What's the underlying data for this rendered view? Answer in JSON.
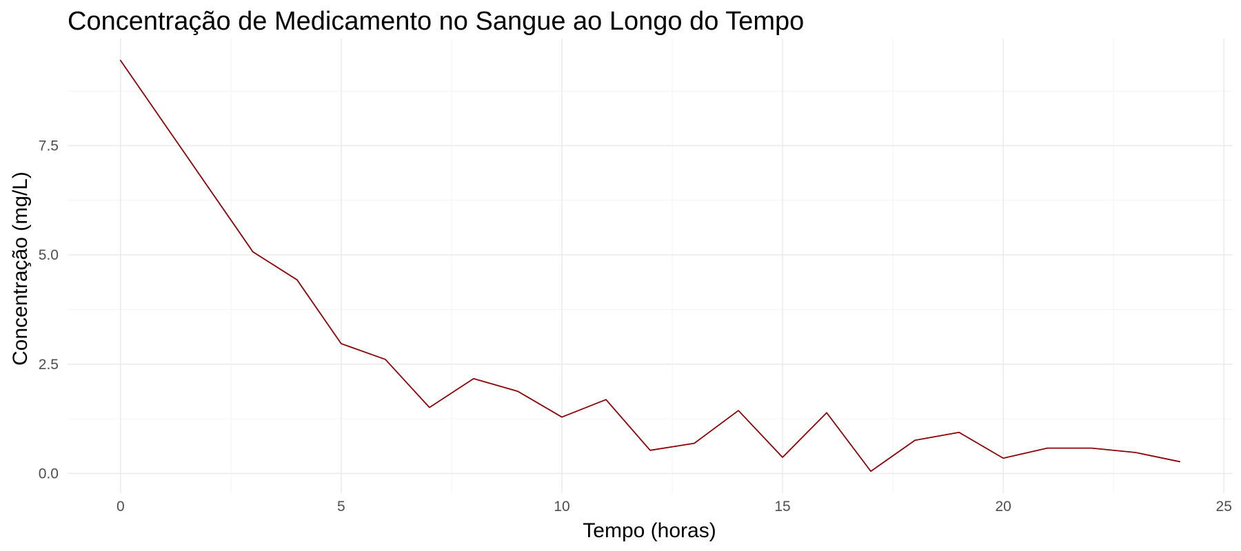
{
  "chart_data": {
    "type": "line",
    "title": "Concentração de Medicamento no Sangue ao Longo do Tempo",
    "xlabel": "Tempo (horas)",
    "ylabel": "Concentração (mg/L)",
    "xlim": [
      -1.2,
      25.2
    ],
    "ylim": [
      -0.45,
      9.95
    ],
    "x_ticks": [
      0,
      5,
      10,
      15,
      20,
      25
    ],
    "x_tick_labels": [
      "0",
      "5",
      "10",
      "15",
      "20",
      "25"
    ],
    "y_ticks": [
      0.0,
      2.5,
      5.0,
      7.5
    ],
    "y_tick_labels": [
      "0.0",
      "2.5",
      "5.0",
      "7.5"
    ],
    "x_minor_ticks": [
      2.5,
      7.5,
      12.5,
      17.5,
      22.5
    ],
    "y_minor_ticks": [
      1.25,
      3.75,
      6.25,
      8.75
    ],
    "grid": true,
    "series": [
      {
        "color": "#8b0000",
        "x": [
          0,
          3,
          4,
          5,
          6,
          7,
          8,
          9,
          10,
          11,
          12,
          13,
          14,
          15,
          16,
          17,
          18,
          19,
          20,
          21,
          22,
          23,
          24
        ],
        "y": [
          9.45,
          5.07,
          4.43,
          2.97,
          2.61,
          1.51,
          2.17,
          1.88,
          1.29,
          1.69,
          0.53,
          0.69,
          1.44,
          0.37,
          1.39,
          0.05,
          0.76,
          0.94,
          0.35,
          0.58,
          0.58,
          0.48,
          0.27
        ]
      }
    ]
  }
}
